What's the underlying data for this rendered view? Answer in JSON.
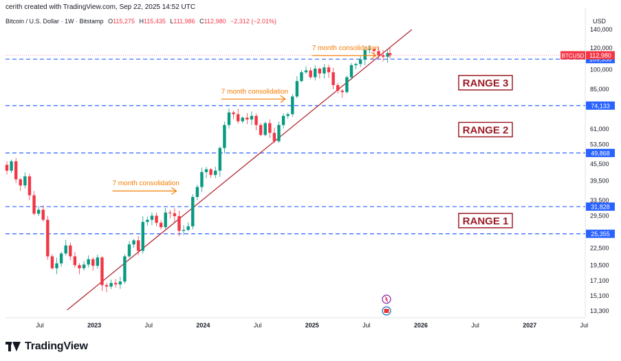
{
  "header": {
    "attribution": "cerith created with TradingView.com, Sep 22, 2025 14:52 UTC",
    "symbol_description": "Bitcoin / U.S. Dollar · 1W · Bitstamp",
    "ohlc": [
      {
        "key": "O",
        "value": "115,275"
      },
      {
        "key": "H",
        "value": "115,435"
      },
      {
        "key": "L",
        "value": "111,986"
      },
      {
        "key": "C",
        "value": "112,980"
      }
    ],
    "change": "−2,312 (−2.01%)",
    "currency": "USD"
  },
  "footer": {
    "brand": "TradingView"
  },
  "chart_data": {
    "type": "candlestick",
    "scale": "log",
    "price_ticks": [
      140000,
      120000,
      100000,
      85000,
      61000,
      53500,
      45500,
      39500,
      33500,
      29500,
      22500,
      19500,
      17100,
      15100,
      13300
    ],
    "price_tick_labels": [
      "140,000",
      "120,000",
      "100,000",
      "85,000",
      "61,000",
      "53,500",
      "45,500",
      "39,500",
      "33,500",
      "29,500",
      "22,500",
      "19,500",
      "17,100",
      "15,100",
      "13,300"
    ],
    "time_labels": [
      "Jul",
      "2023",
      "Jul",
      "2024",
      "Jul",
      "2025",
      "Jul",
      "2026",
      "Jul",
      "2027",
      "Jul"
    ],
    "time_label_dates": [
      "2022-07",
      "2023-01",
      "2023-07",
      "2024-01",
      "2024-07",
      "2025-01",
      "2025-07",
      "2026-01",
      "2026-07",
      "2027-01",
      "2027-07"
    ],
    "current_price": {
      "label": "BTCUSD",
      "value": "112,980",
      "price": 112980
    },
    "levels": [
      {
        "price": 109356,
        "label": "109,356"
      },
      {
        "price": 74133,
        "label": "74,133"
      },
      {
        "price": 49868,
        "label": "49,868"
      },
      {
        "price": 31828,
        "label": "31,828"
      },
      {
        "price": 25355,
        "label": "25,355"
      }
    ],
    "range_labels": [
      {
        "text": "RANGE 3",
        "between": [
          74133,
          109356
        ]
      },
      {
        "text": "RANGE 2",
        "between": [
          49868,
          74133
        ]
      },
      {
        "text": "RANGE 1",
        "between": [
          25355,
          31828
        ]
      }
    ],
    "annotations": [
      {
        "text": "7 month consolidation",
        "date": "2023-03",
        "price": 38000
      },
      {
        "text": "7 month consolidation",
        "date": "2024-03",
        "price": 82000
      },
      {
        "text": "7 month consolidation",
        "date": "2025-01",
        "price": 118000
      }
    ],
    "trendline": {
      "start": {
        "date": "2022-10",
        "price": 13400
      },
      "end": {
        "date": "2025-12",
        "price": 140000
      }
    },
    "path_weekly_close": [
      [
        0,
        43000
      ],
      [
        2,
        46500
      ],
      [
        4,
        40000
      ],
      [
        6,
        38000
      ],
      [
        8,
        41000
      ],
      [
        10,
        35000
      ],
      [
        12,
        30000
      ],
      [
        14,
        31000
      ],
      [
        16,
        28500
      ],
      [
        18,
        21000
      ],
      [
        20,
        19000
      ],
      [
        22,
        19800
      ],
      [
        24,
        21500
      ],
      [
        26,
        23000
      ],
      [
        28,
        21000
      ],
      [
        30,
        19500
      ],
      [
        32,
        19000
      ],
      [
        34,
        19600
      ],
      [
        36,
        20500
      ],
      [
        38,
        19400
      ],
      [
        40,
        20800
      ],
      [
        42,
        16500
      ],
      [
        44,
        16300
      ],
      [
        46,
        16800
      ],
      [
        48,
        16600
      ],
      [
        50,
        17000
      ],
      [
        52,
        21000
      ],
      [
        54,
        23200
      ],
      [
        56,
        24000
      ],
      [
        58,
        22000
      ],
      [
        60,
        28000
      ],
      [
        62,
        28500
      ],
      [
        64,
        29500
      ],
      [
        66,
        27800
      ],
      [
        68,
        26800
      ],
      [
        70,
        30300
      ],
      [
        72,
        30100
      ],
      [
        74,
        29400
      ],
      [
        76,
        26000
      ],
      [
        78,
        26200
      ],
      [
        80,
        27000
      ],
      [
        82,
        34500
      ],
      [
        84,
        37500
      ],
      [
        86,
        42500
      ],
      [
        88,
        43500
      ],
      [
        90,
        41500
      ],
      [
        92,
        43000
      ],
      [
        94,
        52000
      ],
      [
        96,
        63000
      ],
      [
        98,
        70000
      ],
      [
        100,
        69000
      ],
      [
        102,
        65000
      ],
      [
        104,
        67000
      ],
      [
        106,
        66000
      ],
      [
        108,
        68000
      ],
      [
        110,
        63000
      ],
      [
        112,
        58000
      ],
      [
        114,
        64000
      ],
      [
        116,
        59000
      ],
      [
        118,
        55000
      ],
      [
        120,
        63000
      ],
      [
        122,
        68000
      ],
      [
        124,
        69000
      ],
      [
        126,
        80000
      ],
      [
        128,
        91000
      ],
      [
        130,
        98000
      ],
      [
        132,
        99500
      ],
      [
        134,
        94000
      ],
      [
        136,
        101000
      ],
      [
        138,
        97000
      ],
      [
        140,
        102000
      ],
      [
        142,
        98000
      ],
      [
        144,
        88000
      ],
      [
        146,
        84000
      ],
      [
        148,
        83000
      ],
      [
        150,
        94000
      ],
      [
        152,
        104000
      ],
      [
        154,
        105000
      ],
      [
        156,
        109000
      ],
      [
        158,
        118000
      ],
      [
        160,
        119000
      ],
      [
        162,
        117000
      ],
      [
        164,
        113000
      ],
      [
        166,
        111500
      ],
      [
        168,
        115000
      ],
      [
        169,
        112980
      ]
    ]
  }
}
